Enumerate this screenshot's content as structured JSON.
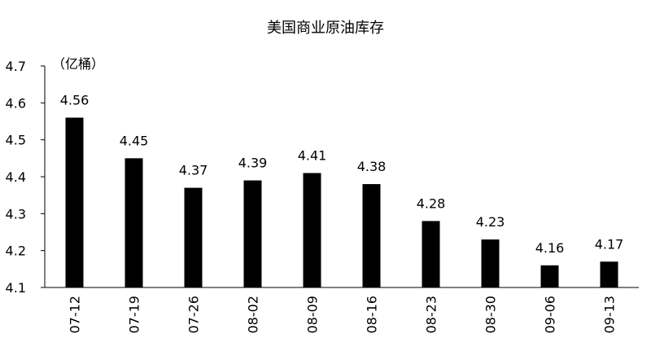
{
  "chart_data": {
    "type": "bar",
    "title": "美国商业原油库存",
    "y_label": "（亿桶）",
    "categories": [
      "07-12",
      "07-19",
      "07-26",
      "08-02",
      "08-09",
      "08-16",
      "08-23",
      "08-30",
      "09-06",
      "09-13"
    ],
    "values": [
      4.56,
      4.45,
      4.37,
      4.39,
      4.41,
      4.38,
      4.28,
      4.23,
      4.16,
      4.17
    ],
    "color": "#000000",
    "ylim": [
      4.1,
      4.7
    ],
    "yticks": [
      4.1,
      4.2,
      4.3,
      4.4,
      4.5,
      4.6,
      4.7
    ],
    "grid": false
  }
}
